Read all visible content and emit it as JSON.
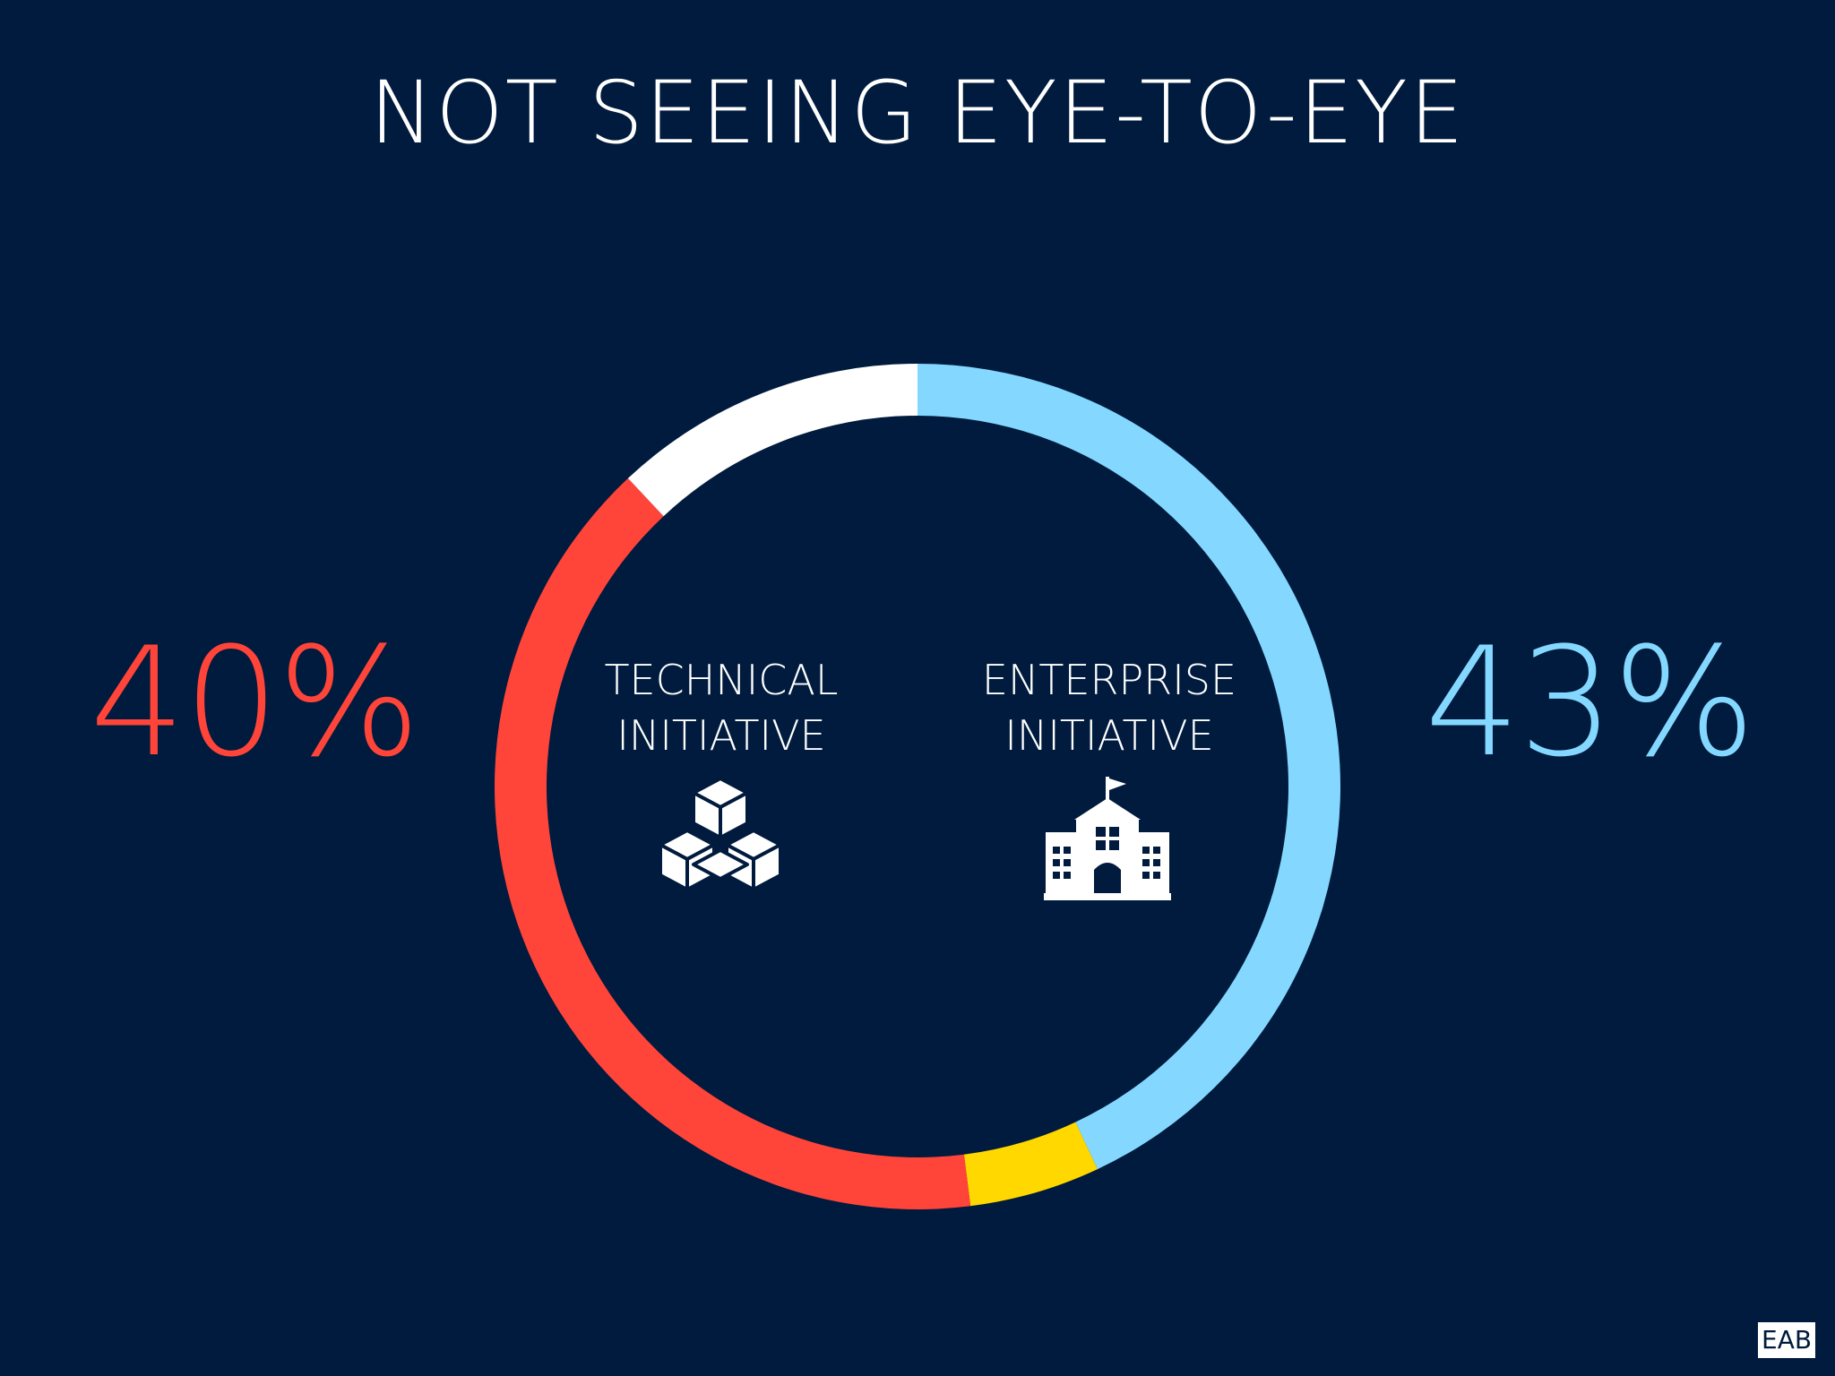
{
  "title": "NOT SEEING EYE-TO-EYE",
  "brand": "EAB",
  "labels": {
    "technical": [
      "TECHNICAL",
      "INITIATIVE"
    ],
    "enterprise": [
      "ENTERPRISE",
      "INITIATIVE"
    ]
  },
  "icons": {
    "technical": "cubes-icon",
    "enterprise": "school-building-icon"
  },
  "chart_data": {
    "type": "pie",
    "style": "donut",
    "start": "top",
    "direction": "clockwise",
    "slices": [
      {
        "label": "ENTERPRISE INITIATIVE",
        "value": 43,
        "display": "43%",
        "color": "#84d8ff"
      },
      {
        "label": "",
        "value": 5,
        "display": "",
        "color": "#ffd800"
      },
      {
        "label": "TECHNICAL INITIATIVE",
        "value": 40,
        "display": "40%",
        "color": "#ff443a"
      },
      {
        "label": "",
        "value": 12,
        "display": "",
        "color": "#ffffff"
      }
    ]
  }
}
